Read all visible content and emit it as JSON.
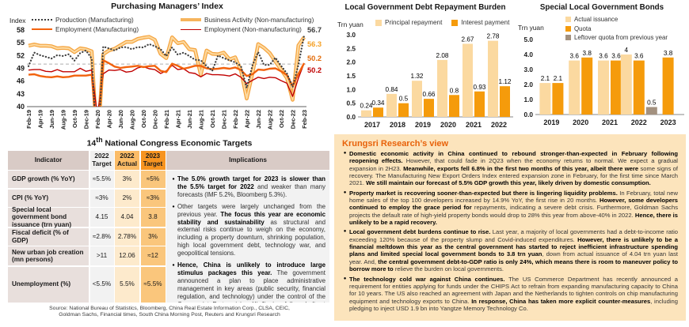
{
  "colors": {
    "light_bar": "#FBD9A0",
    "orange_bar": "#F59B0B",
    "gray_bar": "#A3917F",
    "accent_title": "#E8620A",
    "view_panel_bg": "#FCE4BC"
  },
  "chart_data": [
    {
      "type": "line",
      "title": "Purchasing Managers’ Index",
      "ylabel": "Index",
      "ylim": [
        40,
        58
      ],
      "yticks": [
        58,
        55,
        52,
        49,
        46,
        43,
        40
      ],
      "reference_line": 50,
      "grid": false,
      "legend_position": "top",
      "xtick_every": 2,
      "x": [
        "Feb-19",
        "Mar-19",
        "Apr-19",
        "May-19",
        "Jun-19",
        "Jul-19",
        "Aug-19",
        "Sep-19",
        "Oct-19",
        "Nov-19",
        "Dec-19",
        "Jan-20",
        "Feb-20",
        "Mar-20",
        "Apr-20",
        "May-20",
        "Jun-20",
        "Jul-20",
        "Aug-20",
        "Sep-20",
        "Oct-20",
        "Nov-20",
        "Dec-20",
        "Jan-21",
        "Feb-21",
        "Mar-21",
        "Apr-21",
        "May-21",
        "Jun-21",
        "Jul-21",
        "Aug-21",
        "Sep-21",
        "Oct-21",
        "Nov-21",
        "Dec-21",
        "Jan-22",
        "Feb-22",
        "Mar-22",
        "Apr-22",
        "May-22",
        "Jun-22",
        "Jul-22",
        "Aug-22",
        "Sep-22",
        "Oct-22",
        "Nov-22",
        "Dec-22",
        "Jan-23",
        "Feb-23"
      ],
      "series": [
        {
          "name": "Production (Manufacturing)",
          "style": "dotted",
          "color": "#3F3F3F",
          "end_label": "56.7",
          "end_label_color": "#3F3F3F",
          "values": [
            49.5,
            52.7,
            52.1,
            51.7,
            51.3,
            52.1,
            51.9,
            52.3,
            50.8,
            52.6,
            53.2,
            51.3,
            27.8,
            54.1,
            53.7,
            53.2,
            53.9,
            54.0,
            53.5,
            54.0,
            53.9,
            54.7,
            54.2,
            53.5,
            51.9,
            53.9,
            52.2,
            52.7,
            51.9,
            51.0,
            50.9,
            49.5,
            48.4,
            52.0,
            51.4,
            50.9,
            50.4,
            49.5,
            44.4,
            49.7,
            52.8,
            49.8,
            49.8,
            51.5,
            49.6,
            47.8,
            44.6,
            49.8,
            56.7
          ]
        },
        {
          "name": "Business Activity (Non-manufacturing)",
          "style": "thick",
          "color": "#F5A23B",
          "inner_color": "#FCD9A0",
          "end_label": "56.3",
          "end_label_color": "#F5A126",
          "values": [
            54.3,
            54.6,
            54.3,
            54.3,
            54.2,
            53.7,
            53.8,
            53.7,
            52.8,
            53.7,
            53.5,
            53.0,
            29.6,
            52.3,
            53.2,
            53.6,
            54.4,
            55.2,
            55.2,
            55.9,
            56.2,
            56.4,
            55.7,
            52.4,
            51.4,
            56.3,
            54.9,
            55.2,
            53.5,
            53.3,
            47.5,
            53.2,
            52.4,
            52.3,
            52.7,
            51.1,
            51.6,
            48.4,
            41.9,
            47.8,
            54.7,
            53.8,
            52.6,
            50.6,
            48.7,
            46.7,
            41.6,
            54.4,
            56.3
          ]
        },
        {
          "name": "Employment (Manufacturing)",
          "style": "solid",
          "color": "#F2620D",
          "end_label": "50.2",
          "end_label_color": "#E36C0A",
          "values": [
            47.5,
            47.6,
            47.2,
            47.0,
            46.9,
            47.1,
            46.9,
            47.0,
            47.3,
            47.3,
            47.3,
            47.5,
            31.8,
            50.9,
            50.2,
            49.4,
            49.1,
            49.3,
            49.4,
            49.6,
            49.3,
            49.5,
            49.6,
            48.4,
            48.1,
            50.1,
            49.6,
            48.9,
            49.2,
            49.6,
            49.6,
            49.0,
            48.8,
            48.9,
            49.1,
            48.9,
            49.2,
            48.6,
            47.2,
            47.6,
            48.7,
            48.6,
            48.9,
            49.0,
            48.3,
            47.4,
            44.8,
            47.7,
            50.2
          ]
        },
        {
          "name": "Employment (Non-manufacturing)",
          "style": "thin",
          "color": "#C00000",
          "end_label": "50.2",
          "end_label_color": "#C00000",
          "values": [
            48.6,
            48.7,
            48.7,
            48.3,
            48.2,
            48.7,
            48.2,
            48.2,
            48.2,
            49.0,
            48.3,
            48.6,
            37.9,
            47.7,
            48.6,
            48.5,
            48.7,
            48.1,
            48.3,
            49.1,
            49.4,
            48.9,
            48.7,
            47.8,
            48.4,
            49.7,
            48.7,
            48.9,
            48.0,
            47.8,
            47.0,
            47.8,
            47.5,
            47.5,
            47.4,
            47.2,
            47.7,
            46.9,
            45.4,
            46.2,
            46.9,
            46.6,
            46.9,
            46.8,
            46.1,
            45.5,
            42.4,
            46.7,
            50.2
          ]
        }
      ]
    },
    {
      "type": "bar",
      "title": "Local Government Debt Repayment Burden",
      "unit": "Trn yuan",
      "categories": [
        "2017",
        "2018",
        "2019",
        "2020",
        "2021",
        "2022"
      ],
      "ylim": [
        0,
        3.0
      ],
      "yticks": [
        "3.0",
        "2.5",
        "2.0",
        "1.5",
        "1.0",
        "0.5",
        "0.0"
      ],
      "grid": false,
      "legend_position": "top",
      "series": [
        {
          "name": "Principal repayment",
          "color": "#FBD9A0",
          "values": [
            0.24,
            0.84,
            1.32,
            2.08,
            2.67,
            2.78
          ],
          "labels": [
            "0.24",
            "0.84",
            "1.32",
            "2.08",
            "2.67",
            "2.78"
          ]
        },
        {
          "name": "Interest payment",
          "color": "#F59B0B",
          "values": [
            0.34,
            0.5,
            0.66,
            0.8,
            0.93,
            1.12
          ],
          "labels": [
            "0.34",
            "0.5",
            "0.66",
            "0.8",
            "0.93",
            "1.12"
          ]
        }
      ]
    },
    {
      "type": "bar",
      "title": "Special Local Government Bonds",
      "unit": "Trn yuan",
      "categories": [
        "2019",
        "2020",
        "2021",
        "2022",
        "2023"
      ],
      "ylim": [
        0,
        5.0
      ],
      "yticks": [
        "5.0",
        "4.0",
        "3.0",
        "2.0",
        "1.0",
        "0.0"
      ],
      "grid": false,
      "legend_position": "top",
      "series": [
        {
          "name": "Actual issuance",
          "color": "#FBD9A0",
          "values": [
            2.1,
            3.6,
            3.6,
            4,
            null
          ],
          "labels": [
            "2.1",
            "3.6",
            "3.6",
            "4",
            null
          ]
        },
        {
          "name": "Quota",
          "color": "#F59B0B",
          "values": [
            2.1,
            3.8,
            3.6,
            3.6,
            3.8
          ],
          "labels": [
            "2.1",
            "3.8",
            "3.6",
            "3.6",
            "3.8"
          ]
        },
        {
          "name": "Leftover quota from previous year",
          "color": "#A3917F",
          "values": [
            null,
            null,
            null,
            0.5,
            null
          ],
          "labels": [
            null,
            null,
            null,
            "0.5",
            null
          ]
        }
      ]
    }
  ],
  "table": {
    "title_segments": [
      {
        "t": "14"
      },
      {
        "t": "th",
        "sup": true
      },
      {
        "t": " National Congress Economic Targets"
      }
    ],
    "headers": {
      "indicator": "Indicator",
      "target_2022": "2022 Target",
      "actual_2022": "2022 Actual",
      "target_2023": "2023 Target",
      "implications": "Implications"
    },
    "rows": [
      {
        "indicator": "GDP growth (% YoY)",
        "t2022": "≈5.5%",
        "a2022": "3%",
        "t2023": "≈5%"
      },
      {
        "indicator": "CPI (% YoY)",
        "t2022": "≈3%",
        "a2022": "2%",
        "t2023": "≈3%"
      },
      {
        "indicator": "Special local government bond issuance (trn yuan)",
        "t2022": "4.15",
        "a2022": "4.04",
        "t2023": "3.8"
      },
      {
        "indicator": "Fiscal deficit (% of GDP)",
        "t2022": "≈2.8%",
        "a2022": "2.78%",
        "t2023": "3%"
      },
      {
        "indicator": "New urban job creation (mn persons)",
        "t2022": ">11",
        "a2022": "12.06",
        "t2023": "≈12"
      },
      {
        "indicator": "Unemployment (%)",
        "t2022": "<5.5%",
        "a2022": "5.5%",
        "t2023": "≈5.5%"
      }
    ],
    "implications": [
      [
        {
          "t": "The 5.0% growth target for 2023 is slower than the 5.5% target for 2022",
          "b": true
        },
        {
          "t": " and weaker than many forecasts (IMF 5.2%, Bloomberg 5.3%)."
        }
      ],
      [
        {
          "t": "Other targets were largely unchanged from the previous year. "
        },
        {
          "t": "The focus this year are economic stability and sustainability",
          "b": true
        },
        {
          "t": " as structural and external risks continue to weigh on the economy, including a property downturn, shrinking population, high local government debt, technology war, and geopolitical tensions."
        }
      ],
      [
        {
          "t": "Hence, China is unlikely to introduce large stimulus packages this year.",
          "b": true
        },
        {
          "t": " The government announced a plan to place administrative management in key areas (public security, financial regulation, and technology) under the control of the Communist Party, giving Xi Jinping full and direct control."
        }
      ]
    ],
    "source_line1": "Source:  National Bureau of Statistics, Bloomberg, China Real Estate Information Corp., CLSA, CEIC,",
    "source_line2": "Goldman Sachs, Financial times, South China Morning Post, Reuters and Krungsri Research"
  },
  "view": {
    "title": "Krungsri Research’s view",
    "bullets": [
      [
        {
          "t": "Domestic economic activity in China continued to rebound stronger-than-expected in February following reopening effects.",
          "b": true
        },
        {
          "t": " However, that could fade in 2Q23 when the economy returns to normal. We expect a gradual expansion in 2H23. "
        },
        {
          "t": "Meanwhile, exports fell 6.8% in the first two months of this year, albeit there were",
          "b": true
        },
        {
          "t": " some signs of recovery. The Manufacturing New Export Orders Index entered expansion zone in February, for the first time since March 2021. "
        },
        {
          "t": "We still maintain our forecast of 5.5% GDP growth this year, likely driven by domestic consumption.",
          "b": true
        }
      ],
      [
        {
          "t": "Property market is recovering sooner-than-expected but there is lingering liquidity problems.",
          "b": true
        },
        {
          "t": " In February, total new home sales of the top 100 developers increased by 14.9% YoY, the first rise in 20 months. "
        },
        {
          "t": "However, some developers continued to employ the grace period for",
          "b": true
        },
        {
          "t": " repayments, indicating a severe debt crisis. Furthermore, Goldman Sachs projects the default rate of high-yield property bonds would drop to 28% this year from above-40% in 2022. "
        },
        {
          "t": "Hence, there is unlikely to be a rapid recovery.",
          "b": true
        }
      ],
      [
        {
          "t": "Local government debt burdens continue to rise.",
          "b": true
        },
        {
          "t": " Last year, a majority of local governments had a debt-to-income ratio exceeding 120% because of the property slump and Covid-induced expenditures. "
        },
        {
          "t": "However, there is unlikely to be a financial meltdown this year as the central government has started to reject inefficient infrastructure spending plans and limited special local government bonds to 3.8 trn yuan",
          "b": true
        },
        {
          "t": ", down from actual issuance of 4.04 trn yuan last year. And, "
        },
        {
          "t": "the central government debt-to-GDP ratio is only 24%, which means there is room to maneuver policy to borrow more to",
          "b": true
        },
        {
          "t": " relieve the burden on local governments."
        }
      ],
      [
        {
          "t": "The technology cold war against China continues.",
          "b": true
        },
        {
          "t": " The US Commerce Department has recently announced a requirement for entities applying for funds under the CHIPS Act to refrain from expanding manufacturing capacity to China for 10 years. The US also reached an agreement with Japan and the Netherlands to tighten controls on chip manufacturing equipment and technology exports to China. "
        },
        {
          "t": "In response, China has taken more explicit counter-measures",
          "b": true
        },
        {
          "t": ", including pledging to inject USD 1.9 bn into Yangtze Memory Technology Co.",
          "b": false
        }
      ]
    ]
  }
}
